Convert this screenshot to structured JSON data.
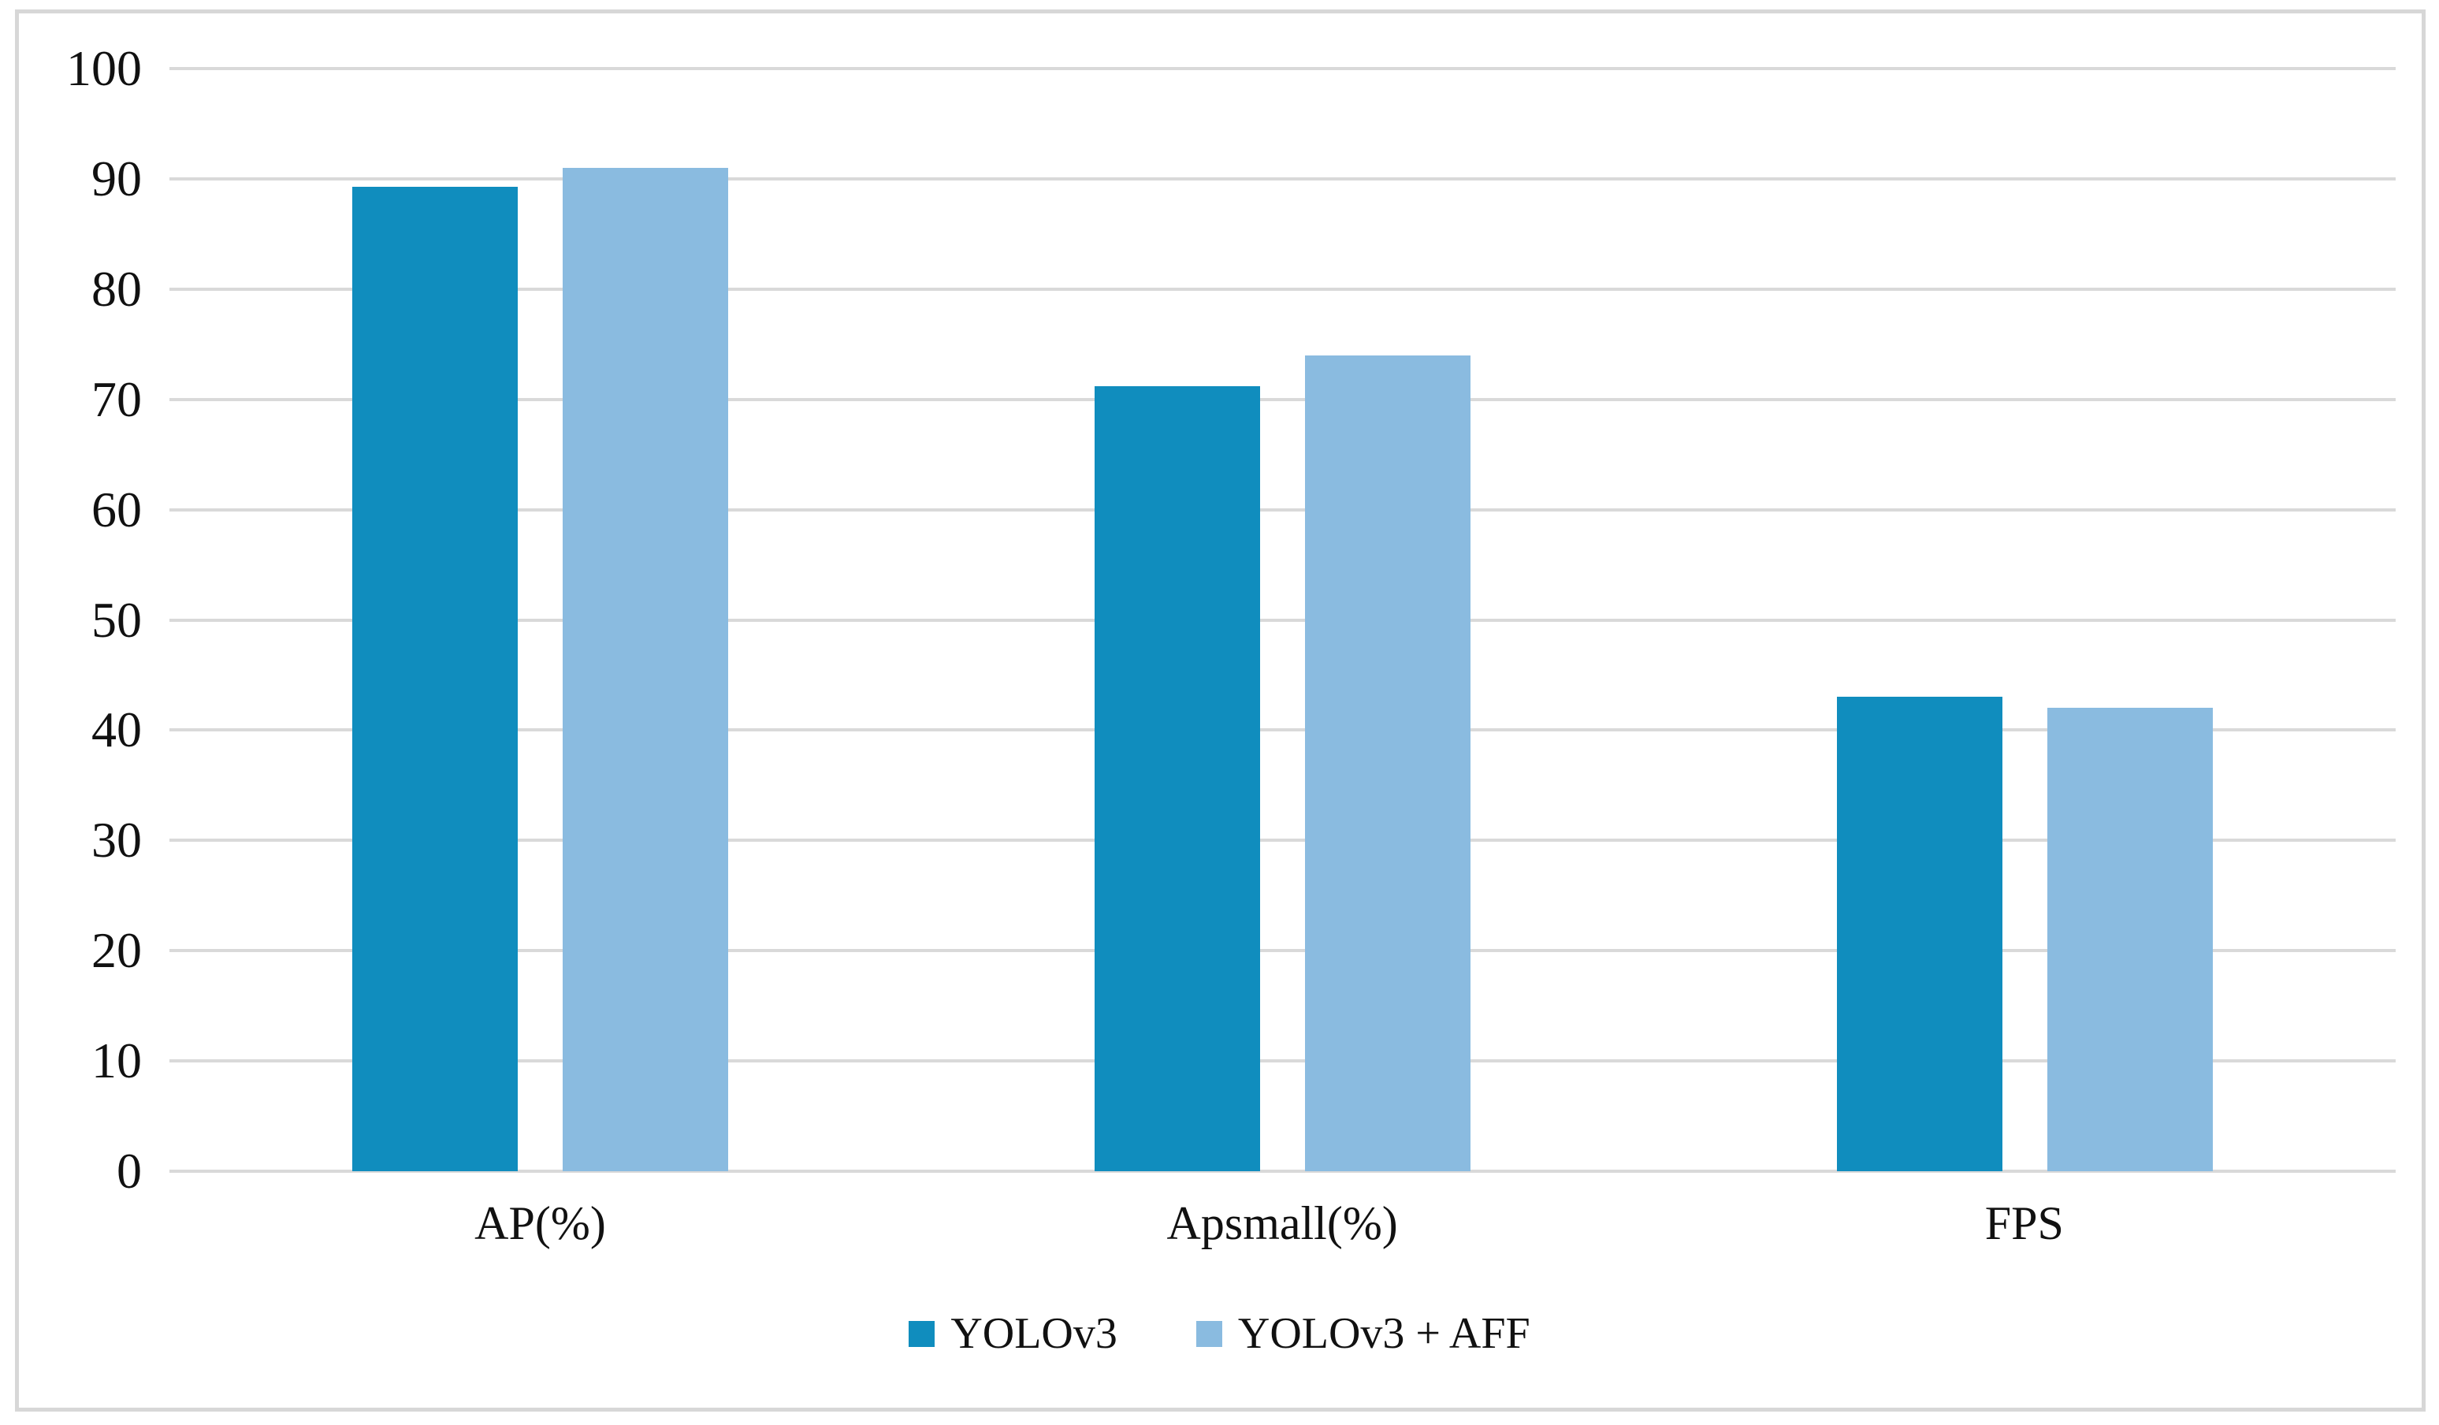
{
  "chart_data": {
    "type": "bar",
    "title": "",
    "xlabel": "",
    "ylabel": "",
    "categories": [
      "AP(%)",
      "Apsmall(%)",
      "FPS"
    ],
    "series": [
      {
        "name": "YOLOv3",
        "color": "#108dbe",
        "values": [
          89.3,
          71.2,
          43
        ]
      },
      {
        "name": "YOLOv3 + AFF",
        "color": "#8abbe0",
        "values": [
          91.0,
          74.0,
          42
        ]
      }
    ],
    "ylim": [
      0,
      100
    ],
    "yticks": [
      0,
      10,
      20,
      30,
      40,
      50,
      60,
      70,
      80,
      90,
      100
    ],
    "grid": true,
    "gridline_color": "#d9d9d9",
    "frame_border_color": "#d7d7d7",
    "legend_position": "bottom"
  }
}
